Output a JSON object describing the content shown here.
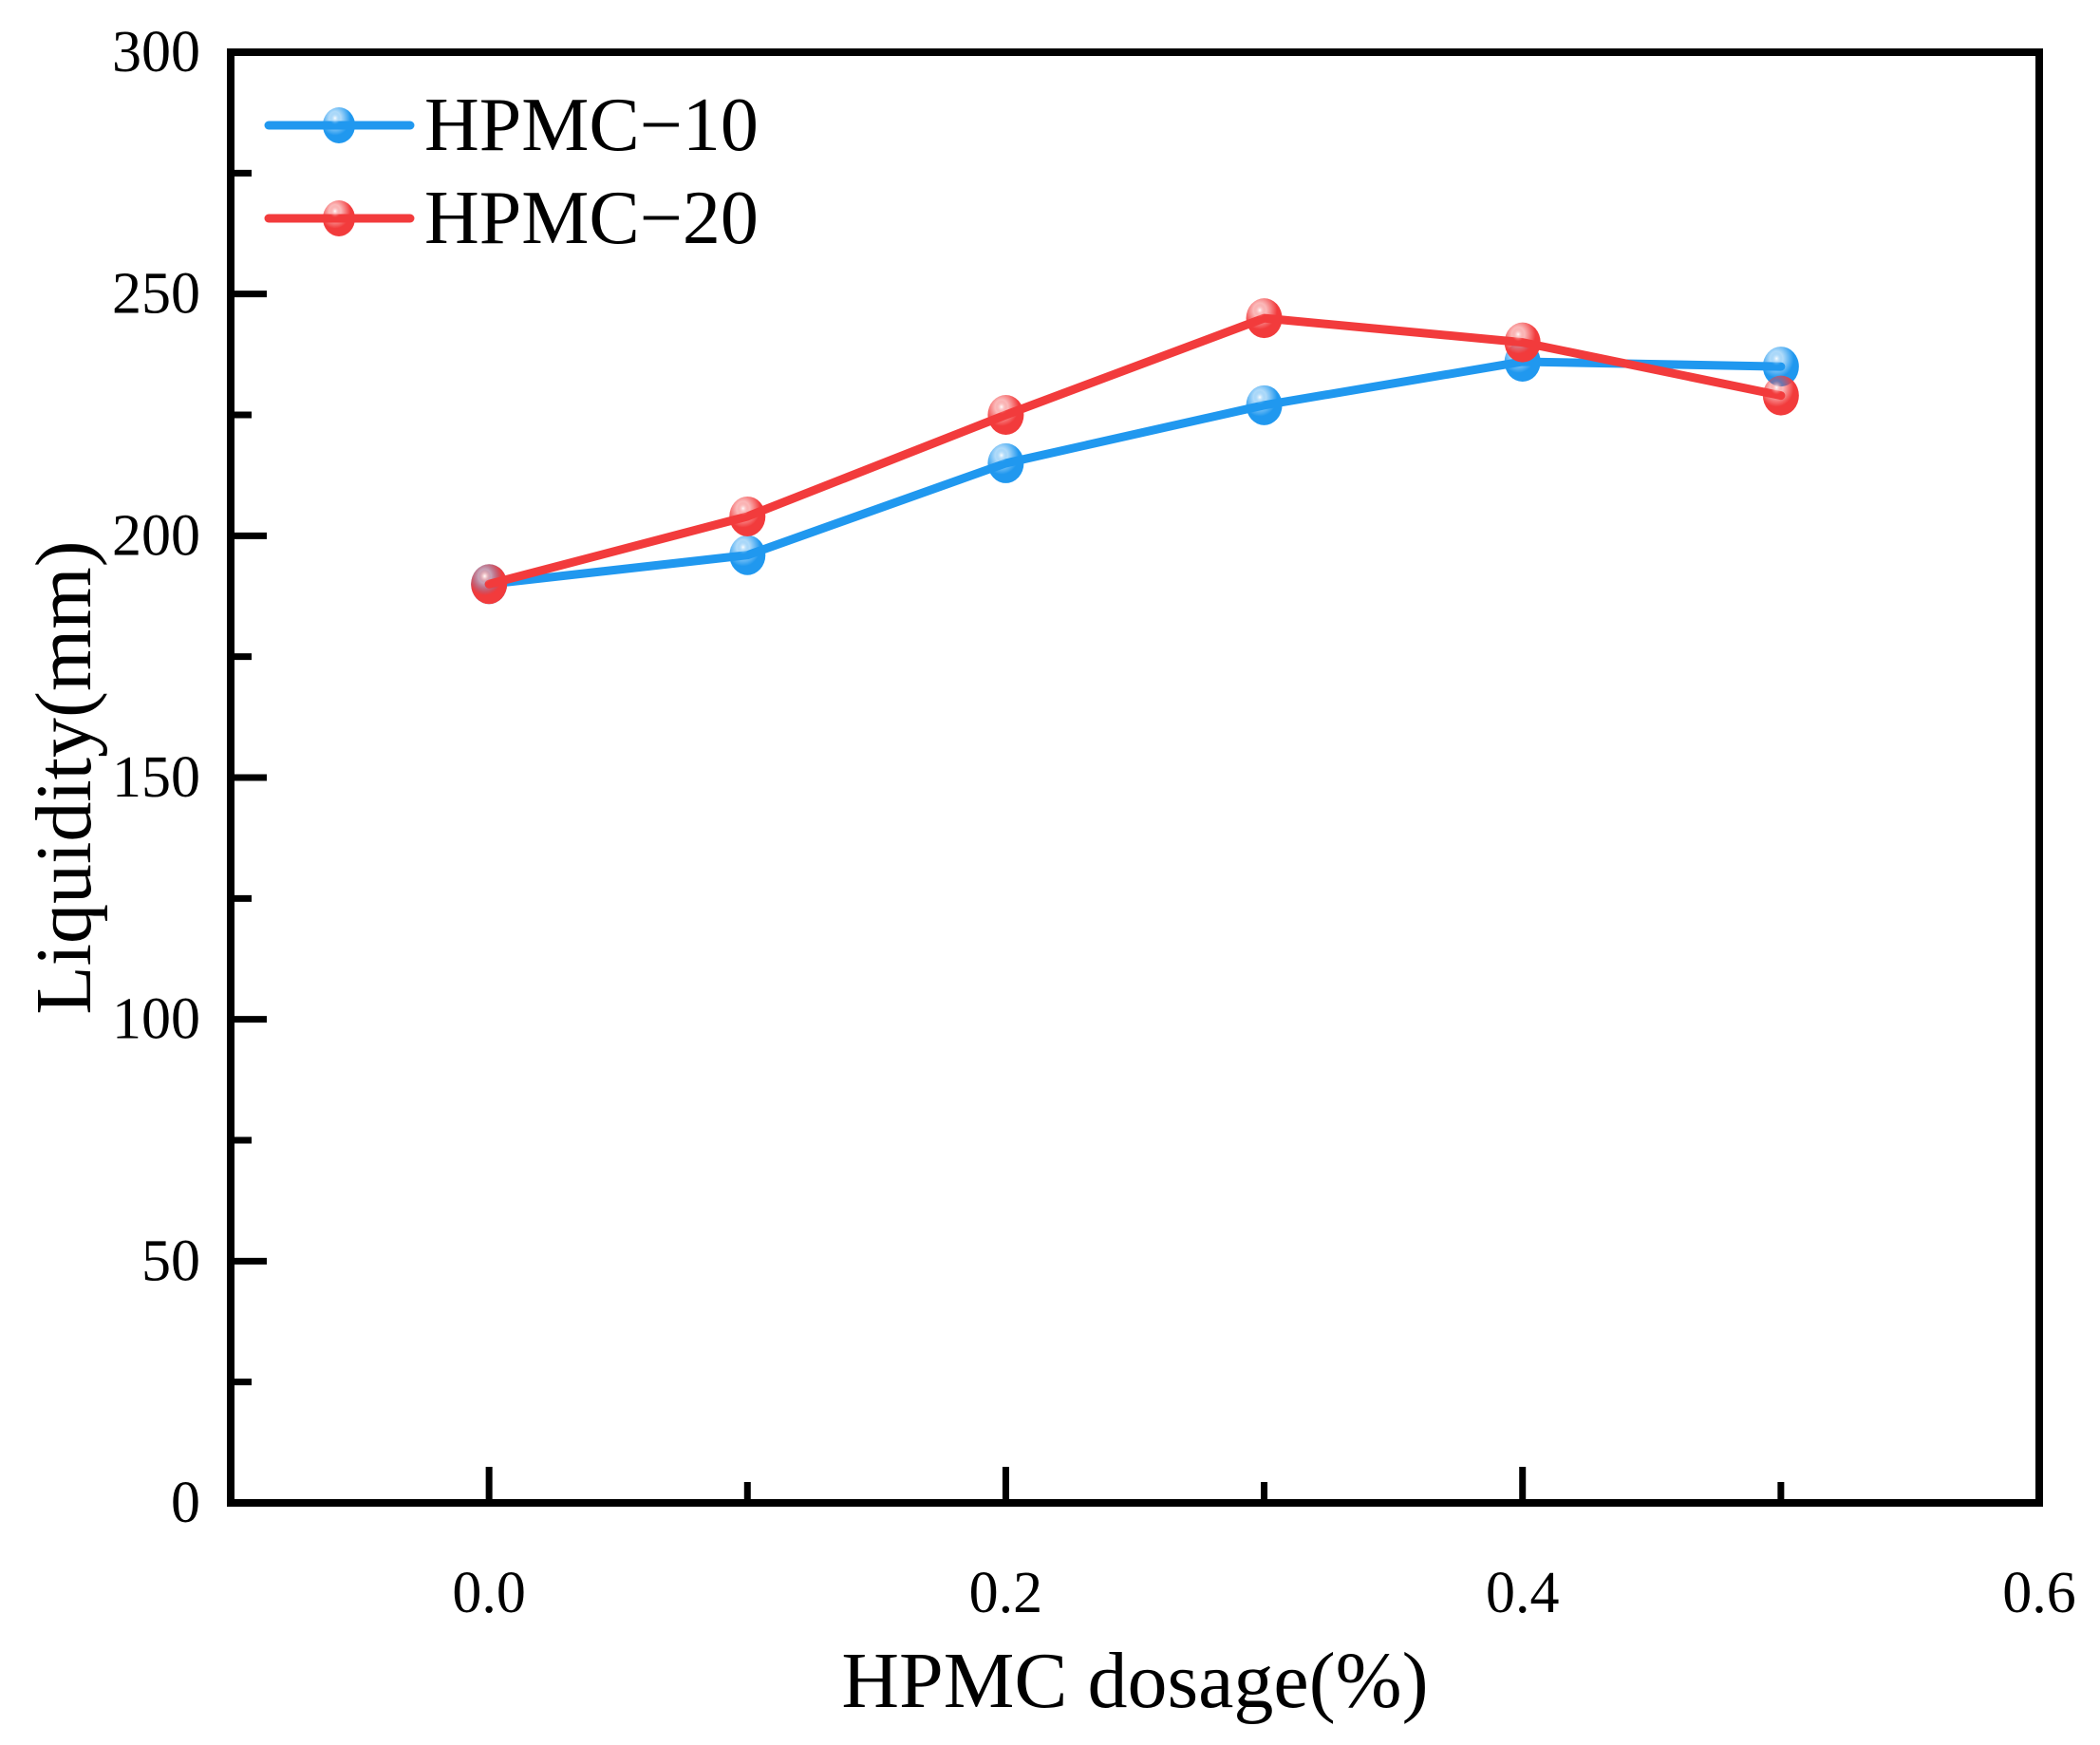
{
  "figure": {
    "background": "#ffffff",
    "frame_color": "#000000"
  },
  "chart_data": {
    "type": "line",
    "title": "",
    "xlabel": "HPMC dosage(%)",
    "ylabel": "Liquidity(mm)",
    "x": [
      0.0,
      0.1,
      0.2,
      0.3,
      0.4,
      0.5
    ],
    "series": [
      {
        "name": "HPMC−10",
        "key": "hpmc-10",
        "color": "#2098EF",
        "values": [
          190,
          196,
          215,
          227,
          236,
          235
        ]
      },
      {
        "name": "HPMC−20",
        "key": "hpmc-20",
        "color": "#F23B3C",
        "values": [
          190,
          204,
          225,
          245,
          240,
          229
        ]
      }
    ],
    "xlim": [
      -0.1,
      0.6
    ],
    "ylim": [
      0,
      300
    ],
    "x_major_ticks": [
      0.0,
      0.2,
      0.4,
      0.6
    ],
    "x_major_labels": [
      "0.0",
      "0.2",
      "0.4",
      "0.6"
    ],
    "x_minor_ticks": [
      0.1,
      0.3,
      0.5
    ],
    "y_major_ticks": [
      0,
      50,
      100,
      150,
      200,
      250,
      300
    ],
    "y_major_labels": [
      "0",
      "50",
      "100",
      "150",
      "200",
      "250",
      "300"
    ],
    "y_minor_ticks": [
      25,
      75,
      125,
      175,
      225,
      275
    ],
    "grid": false,
    "legend_position": "top-left",
    "marker": "sphere"
  }
}
